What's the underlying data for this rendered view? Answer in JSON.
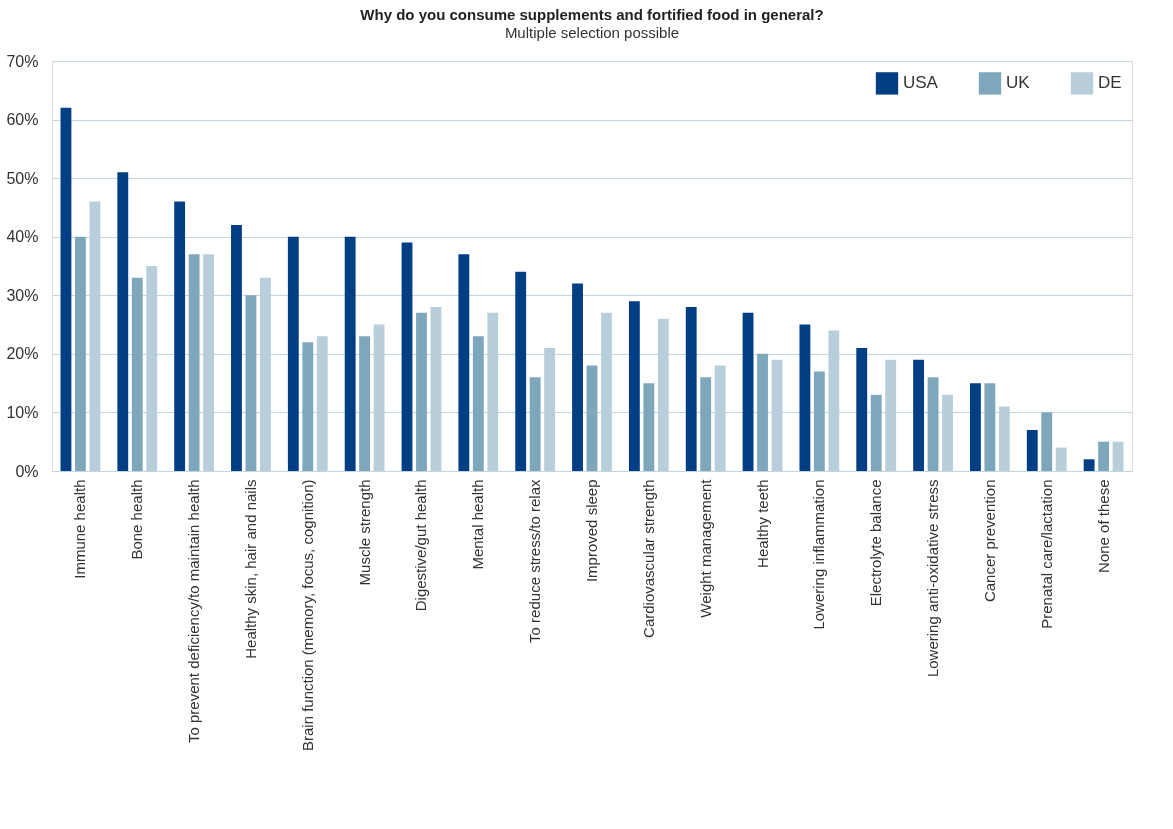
{
  "chart_data": {
    "type": "bar",
    "title": "Why do you consume supplements and fortified food in general?",
    "subtitle": "Multiple selection possible",
    "categories": [
      "Immune health",
      "Bone health",
      "To prevent deficiency/to maintain health",
      "Healthy skin, hair and nails",
      "Brain function (memory, focus, cognition)",
      "Muscle strength",
      "Digestive/gut health",
      "Mental health",
      "To reduce stress/to relax",
      "Improved sleep",
      "Cardiovascular strength",
      "Weight management",
      "Healthy teeth",
      "Lowering inflammation",
      "Electrolyte balance",
      "Lowering anti-oxidative stress",
      "Cancer prevention",
      "Prenatal care/lactation",
      "None of these"
    ],
    "series": [
      {
        "name": "USA",
        "color": "#023e84",
        "values": [
          62,
          51,
          46,
          42,
          40,
          40,
          39,
          37,
          34,
          32,
          29,
          28,
          27,
          25,
          21,
          19,
          15,
          7,
          2
        ]
      },
      {
        "name": "UK",
        "color": "#7fa7bc",
        "values": [
          40,
          33,
          37,
          30,
          22,
          23,
          27,
          23,
          16,
          18,
          15,
          16,
          20,
          17,
          13,
          16,
          15,
          10,
          5
        ]
      },
      {
        "name": "DE",
        "color": "#b8cfdb",
        "values": [
          46,
          35,
          37,
          33,
          23,
          25,
          28,
          27,
          21,
          27,
          26,
          18,
          19,
          24,
          19,
          13,
          11,
          4,
          5
        ]
      }
    ],
    "ylim": [
      0,
      70
    ],
    "yticks": [
      {
        "value": 0,
        "label": "0%"
      },
      {
        "value": 10,
        "label": "10%"
      },
      {
        "value": 20,
        "label": "20%"
      },
      {
        "value": 30,
        "label": "30%"
      },
      {
        "value": 40,
        "label": "40%"
      },
      {
        "value": 50,
        "label": "50%"
      },
      {
        "value": 60,
        "label": "60%"
      },
      {
        "value": 70,
        "label": "70%"
      }
    ],
    "grid": "y",
    "legend": "top right"
  }
}
